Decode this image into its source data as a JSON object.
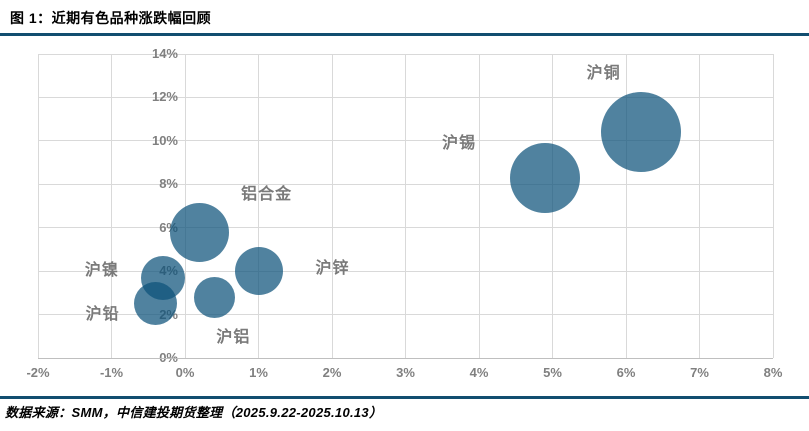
{
  "page": {
    "title": "图 1：近期有色品种涨跌幅回顾",
    "source": "数据来源：SMM，中信建投期货整理（2025.9.22-2025.10.13）"
  },
  "colors": {
    "divider": "#124E70",
    "bubble_fill": "#0C527A",
    "bubble_opacity": 0.72,
    "gridline": "#D9D9D9",
    "axis_line": "#BFBFBF",
    "tick_label": "#808080",
    "bubble_label": "#7A7A7A"
  },
  "chart_data": {
    "type": "scatter",
    "subtype": "bubble",
    "title": "",
    "xlabel": "",
    "ylabel": "",
    "grid": true,
    "legend": "none",
    "x_axis": {
      "min": -2,
      "max": 8,
      "tick_step": 1,
      "unit": "%",
      "tick_labels": [
        "-2%",
        "-1%",
        "0%",
        "1%",
        "2%",
        "3%",
        "4%",
        "5%",
        "6%",
        "7%",
        "8%"
      ]
    },
    "y_axis": {
      "min": 0,
      "max": 14,
      "tick_step": 2,
      "unit": "%",
      "tick_labels": [
        "0%",
        "2%",
        "4%",
        "6%",
        "8%",
        "10%",
        "12%",
        "14%"
      ]
    },
    "series": [
      {
        "id": "shfe-copper",
        "name": "沪铜",
        "x": 6.2,
        "y": 10.4,
        "bubble_radius_px": 40,
        "label_offset": [
          -37,
          -61
        ]
      },
      {
        "id": "shfe-tin",
        "name": "沪锡",
        "x": 4.9,
        "y": 8.3,
        "bubble_radius_px": 35,
        "label_offset": [
          -86,
          -37
        ]
      },
      {
        "id": "aluminum-alloy",
        "name": "铝合金",
        "x": 0.2,
        "y": 5.8,
        "bubble_radius_px": 29.5,
        "label_offset": [
          67,
          -40
        ]
      },
      {
        "id": "shfe-zinc",
        "name": "沪锌",
        "x": 1.0,
        "y": 4.0,
        "bubble_radius_px": 24,
        "label_offset": [
          74,
          -5
        ]
      },
      {
        "id": "shfe-nickel",
        "name": "沪镍",
        "x": -0.3,
        "y": 3.7,
        "bubble_radius_px": 22,
        "label_offset": [
          -61,
          -10
        ]
      },
      {
        "id": "shfe-lead",
        "name": "沪铅",
        "x": -0.4,
        "y": 2.5,
        "bubble_radius_px": 21.7,
        "label_offset": [
          -53,
          8
        ]
      },
      {
        "id": "shfe-aluminum",
        "name": "沪铝",
        "x": 0.4,
        "y": 2.8,
        "bubble_radius_px": 20.5,
        "label_offset": [
          19,
          38
        ]
      }
    ]
  }
}
